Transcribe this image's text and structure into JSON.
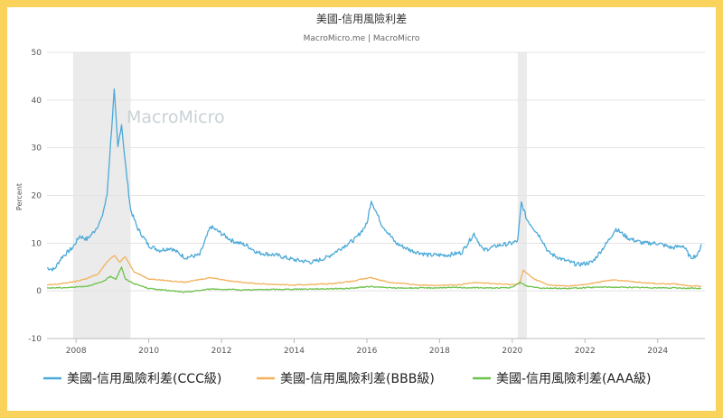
{
  "chart_data": {
    "type": "line",
    "title": "美國-信用風險利差",
    "subtitle": "MacroMicro.me | MacroMicro",
    "watermark": "MacroMicro",
    "xlabel": "",
    "ylabel": "Percent",
    "xlim": [
      2007.2,
      2025.3
    ],
    "ylim": [
      -10,
      50
    ],
    "yticks": [
      -10,
      0,
      10,
      20,
      30,
      40,
      50
    ],
    "xticks": [
      2008,
      2010,
      2012,
      2014,
      2016,
      2018,
      2020,
      2022,
      2024
    ],
    "grid": true,
    "legend_position": "bottom",
    "shaded_periods": [
      [
        2007.92,
        2009.5
      ],
      [
        2020.15,
        2020.4
      ]
    ],
    "series": [
      {
        "name": "美國-信用風險利差(CCC級)",
        "color": "#4ba9d8",
        "x": [
          2007.2,
          2007.4,
          2007.6,
          2007.9,
          2008.1,
          2008.3,
          2008.5,
          2008.7,
          2008.85,
          2008.95,
          2009.05,
          2009.15,
          2009.25,
          2009.35,
          2009.5,
          2009.7,
          2010.0,
          2010.3,
          2010.6,
          2011.0,
          2011.4,
          2011.7,
          2011.9,
          2012.3,
          2012.7,
          2013.0,
          2013.5,
          2014.0,
          2014.5,
          2014.9,
          2015.3,
          2015.7,
          2016.0,
          2016.12,
          2016.4,
          2016.8,
          2017.2,
          2017.7,
          2018.2,
          2018.6,
          2018.95,
          2019.2,
          2019.6,
          2020.0,
          2020.15,
          2020.25,
          2020.4,
          2020.6,
          2020.8,
          2021.0,
          2021.4,
          2021.8,
          2022.2,
          2022.6,
          2022.85,
          2023.2,
          2023.6,
          2024.0,
          2024.4,
          2024.7,
          2024.9,
          2025.1,
          2025.2
        ],
        "values": [
          4.8,
          4.5,
          7.0,
          9.0,
          11.5,
          10.8,
          12.5,
          15.0,
          20.0,
          31.0,
          42.0,
          30.0,
          35.0,
          27.0,
          17.0,
          13.0,
          9.5,
          8.5,
          9.0,
          7.0,
          7.5,
          13.5,
          12.5,
          10.5,
          9.5,
          8.0,
          7.5,
          6.5,
          6.0,
          7.0,
          9.0,
          11.0,
          14.0,
          19.0,
          14.0,
          10.0,
          8.5,
          7.5,
          7.5,
          8.0,
          12.0,
          8.5,
          9.5,
          10.0,
          10.5,
          18.5,
          15.0,
          13.0,
          11.0,
          8.0,
          6.5,
          5.5,
          6.0,
          10.0,
          13.0,
          11.0,
          10.0,
          10.0,
          9.0,
          9.5,
          7.0,
          7.5,
          9.8
        ]
      },
      {
        "name": "美國-信用風險利差(BBB級)",
        "color": "#f2b25c",
        "x": [
          2007.2,
          2007.6,
          2008.0,
          2008.3,
          2008.6,
          2008.9,
          2009.05,
          2009.2,
          2009.35,
          2009.6,
          2010.0,
          2011.0,
          2011.7,
          2012.3,
          2013.0,
          2014.0,
          2015.0,
          2015.6,
          2016.1,
          2016.6,
          2017.5,
          2018.5,
          2019.0,
          2019.5,
          2020.0,
          2020.2,
          2020.3,
          2020.6,
          2021.0,
          2021.5,
          2022.0,
          2022.5,
          2022.8,
          2023.5,
          2024.0,
          2024.5,
          2025.0,
          2025.2
        ],
        "values": [
          1.2,
          1.5,
          2.0,
          2.6,
          3.5,
          6.5,
          7.5,
          6.0,
          7.2,
          4.0,
          2.5,
          1.8,
          2.8,
          2.0,
          1.5,
          1.2,
          1.5,
          2.0,
          2.8,
          1.8,
          1.2,
          1.2,
          1.8,
          1.5,
          1.3,
          1.5,
          4.3,
          2.5,
          1.2,
          1.0,
          1.3,
          2.0,
          2.3,
          1.8,
          1.5,
          1.4,
          1.0,
          1.0
        ]
      },
      {
        "name": "美國-信用風險利差(AAA級)",
        "color": "#6cc24a",
        "x": [
          2007.2,
          2007.8,
          2008.3,
          2008.7,
          2008.95,
          2009.1,
          2009.25,
          2009.35,
          2009.6,
          2010.0,
          2011.0,
          2011.7,
          2012.5,
          2013.5,
          2014.5,
          2015.5,
          2016.1,
          2016.7,
          2017.5,
          2018.5,
          2019.5,
          2020.0,
          2020.2,
          2020.4,
          2020.8,
          2021.5,
          2022.5,
          2023.5,
          2024.5,
          2025.2
        ],
        "values": [
          0.6,
          0.7,
          1.0,
          1.8,
          3.0,
          2.5,
          5.0,
          2.5,
          1.5,
          0.5,
          -0.3,
          0.4,
          0.2,
          0.3,
          0.4,
          0.5,
          0.9,
          0.6,
          0.6,
          0.7,
          0.6,
          0.7,
          1.8,
          1.0,
          0.6,
          0.5,
          0.8,
          0.7,
          0.6,
          0.5
        ]
      }
    ]
  }
}
